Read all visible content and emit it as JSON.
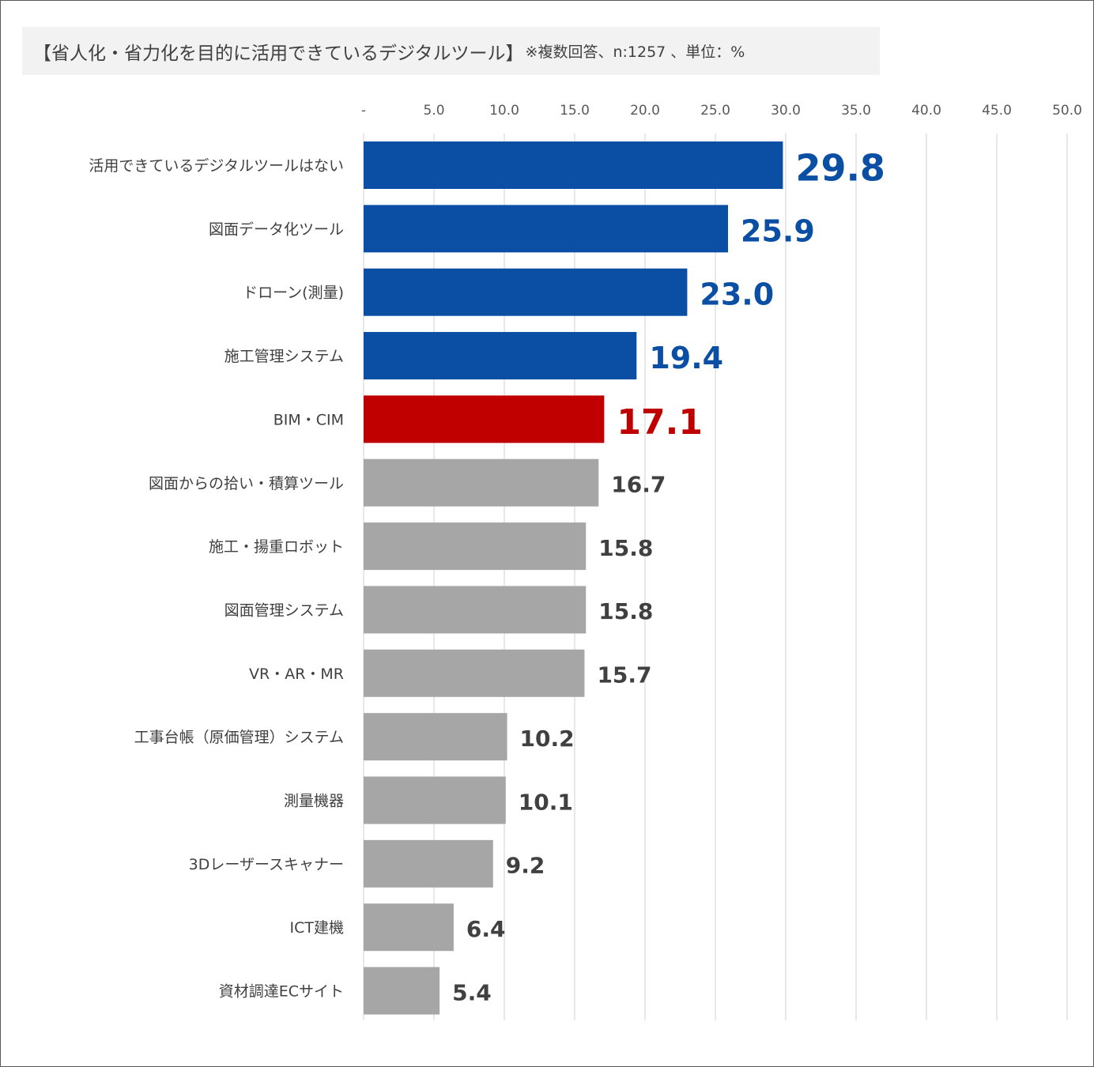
{
  "colors": {
    "highlight_blue": "#0a4fa3",
    "highlight_red": "#c00000",
    "default_bar": "#a6a6a6",
    "default_label": "#404040",
    "grid": "#d9d9d9"
  },
  "chart_data": {
    "type": "bar",
    "orientation": "horizontal",
    "title": "【省人化・省力化を目的に活用できているデジタルツール】",
    "subtitle": "※複数回答、n:1257 、単位：%",
    "xlim": [
      0,
      50
    ],
    "x_ticks": [
      {
        "value": 0,
        "label": "-"
      },
      {
        "value": 5,
        "label": "5.0"
      },
      {
        "value": 10,
        "label": "10.0"
      },
      {
        "value": 15,
        "label": "15.0"
      },
      {
        "value": 20,
        "label": "20.0"
      },
      {
        "value": 25,
        "label": "25.0"
      },
      {
        "value": 30,
        "label": "30.0"
      },
      {
        "value": 35,
        "label": "35.0"
      },
      {
        "value": 40,
        "label": "40.0"
      },
      {
        "value": 45,
        "label": "45.0"
      },
      {
        "value": 50,
        "label": "50.0"
      }
    ],
    "grid": true,
    "categories": [
      "活用できているデジタルツールはない",
      "図面データ化ツール",
      "ドローン(測量)",
      "施工管理システム",
      "BIM・CIM",
      "図面からの拾い・積算ツール",
      "施工・揚重ロボット",
      "図面管理システム",
      "VR・AR・MR",
      "工事台帳（原価管理）システム",
      "測量機器",
      "3Dレーザースキャナー",
      "ICT建機",
      "資材調達ECサイト"
    ],
    "values": [
      29.8,
      25.9,
      23.0,
      19.4,
      17.1,
      16.7,
      15.8,
      15.8,
      15.7,
      10.2,
      10.1,
      9.2,
      6.4,
      5.4
    ],
    "value_labels": [
      "29.8",
      "25.9",
      "23.0",
      "19.4",
      "17.1",
      "16.7",
      "15.8",
      "15.8",
      "15.7",
      "10.2",
      "10.1",
      "9.2",
      "6.4",
      "5.4"
    ],
    "highlight": [
      "blue",
      "blue",
      "blue",
      "blue",
      "red",
      "none",
      "none",
      "none",
      "none",
      "none",
      "none",
      "none",
      "none",
      "none"
    ]
  }
}
